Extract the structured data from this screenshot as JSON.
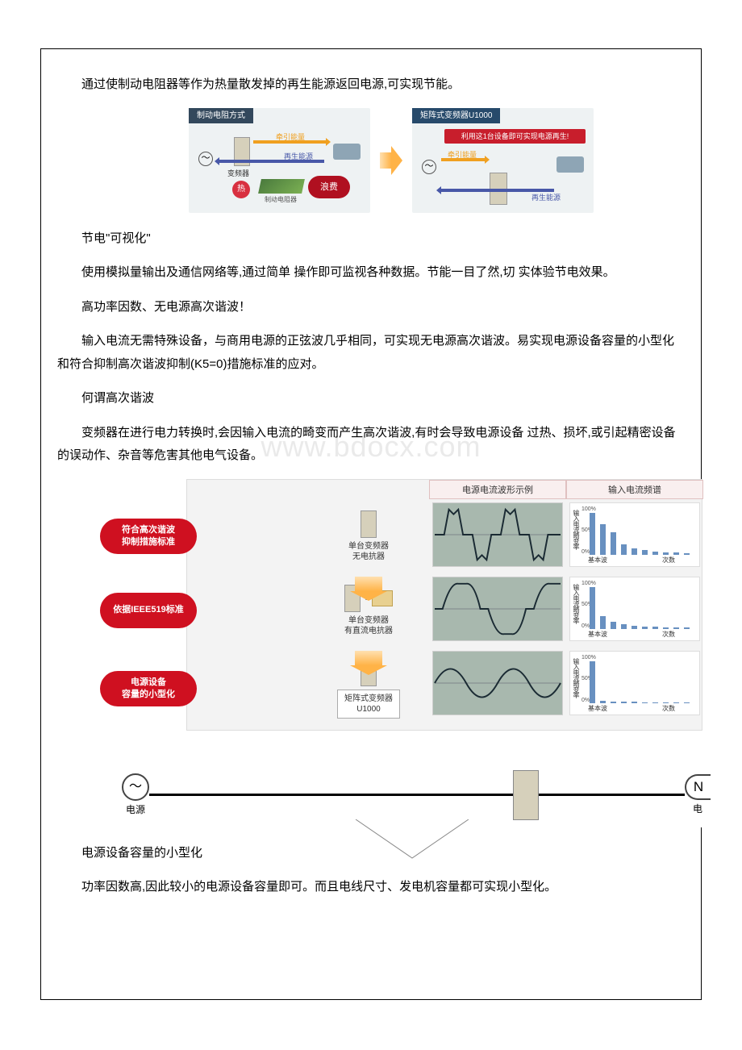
{
  "intro_para": "通过使制动电阻器等作为热量散发掉的再生能源返回电源,可实现节能。",
  "diag1": {
    "left_tab": "制动电阻方式",
    "left_tab_color": "#33485c",
    "right_tab": "矩阵式变频器U1000",
    "right_tab_color": "#274a6b",
    "banner": "利用这1台设备即可实现电源再生!",
    "banner_color": "#c81e2c",
    "pull_label": "牵引能量",
    "pull_color": "#f0a020",
    "regen_label": "再生能源",
    "regen_color": "#4858a8",
    "inverter_label": "变频器",
    "heat_label": "热",
    "heat_color": "#d83040",
    "resistor_label": "制动电阻器",
    "waste_label": "浪费",
    "waste_color": "#b01020"
  },
  "sec1_h": "节电\"可视化\"",
  "sec1_p": "使用模拟量输出及通信网络等,通过简单 操作即可监视各种数据。节能一目了然,切 实体验节电效果。",
  "sec2_h": "高功率因数、无电源高次谐波！",
  "sec2_p": "输入电流无需特殊设备，与商用电源的正弦波几乎相同，可实现无电源高次谐波。易实现电源设备容量的小型化和符合抑制高次谐波抑制(K5=0)措施标准的应对。",
  "sec3_h": "何谓高次谐波",
  "sec3_p": "变频器在进行电力转换时,会因输入电流的畸变而产生高次谐波,有时会导致电源设备 过热、损坏,或引起精密设备的误动作、杂音等危害其他电气设备。",
  "diag2": {
    "head_wave": "电源电流波形示例",
    "head_spec": "输入电流频谱",
    "head_bg": "#f9efef",
    "badge_color": "#cf1020",
    "bar_color": "#6890c0",
    "ylabel": "输入电流畸变率",
    "xlab_base": "基本波",
    "xlab_order": "次数",
    "yticks": [
      "100%",
      "50%",
      "0%"
    ],
    "rows": [
      {
        "badge": "符合高次谐波\n抑制措施标准",
        "dev_label": "单台变频器\n无电抗器",
        "has_reactor": false,
        "boxed": false,
        "wave": "distorted",
        "spectrum": [
          100,
          72,
          52,
          24,
          14,
          10,
          7,
          5,
          4,
          3
        ]
      },
      {
        "badge": "依据IEEE519标准",
        "dev_label": "单台变频器\n有直流电抗器",
        "has_reactor": true,
        "boxed": false,
        "wave": "semi",
        "spectrum": [
          100,
          30,
          16,
          10,
          7,
          5,
          4,
          3,
          2,
          2
        ]
      },
      {
        "badge": "电源设备\n容量的小型化",
        "dev_label": "矩阵式变频器\nU1000",
        "has_reactor": false,
        "boxed": true,
        "wave": "sine",
        "spectrum": [
          100,
          4,
          3,
          2,
          2,
          1,
          1,
          1,
          1,
          1
        ]
      }
    ],
    "source_label": "电源",
    "right_label": "电"
  },
  "sec4_h": "电源设备容量的小型化",
  "sec4_p": "功率因数高,因此较小的电源设备容量即可。而且电线尺寸、发电机容量都可实现小型化。",
  "watermark": "www.bdocx.com"
}
